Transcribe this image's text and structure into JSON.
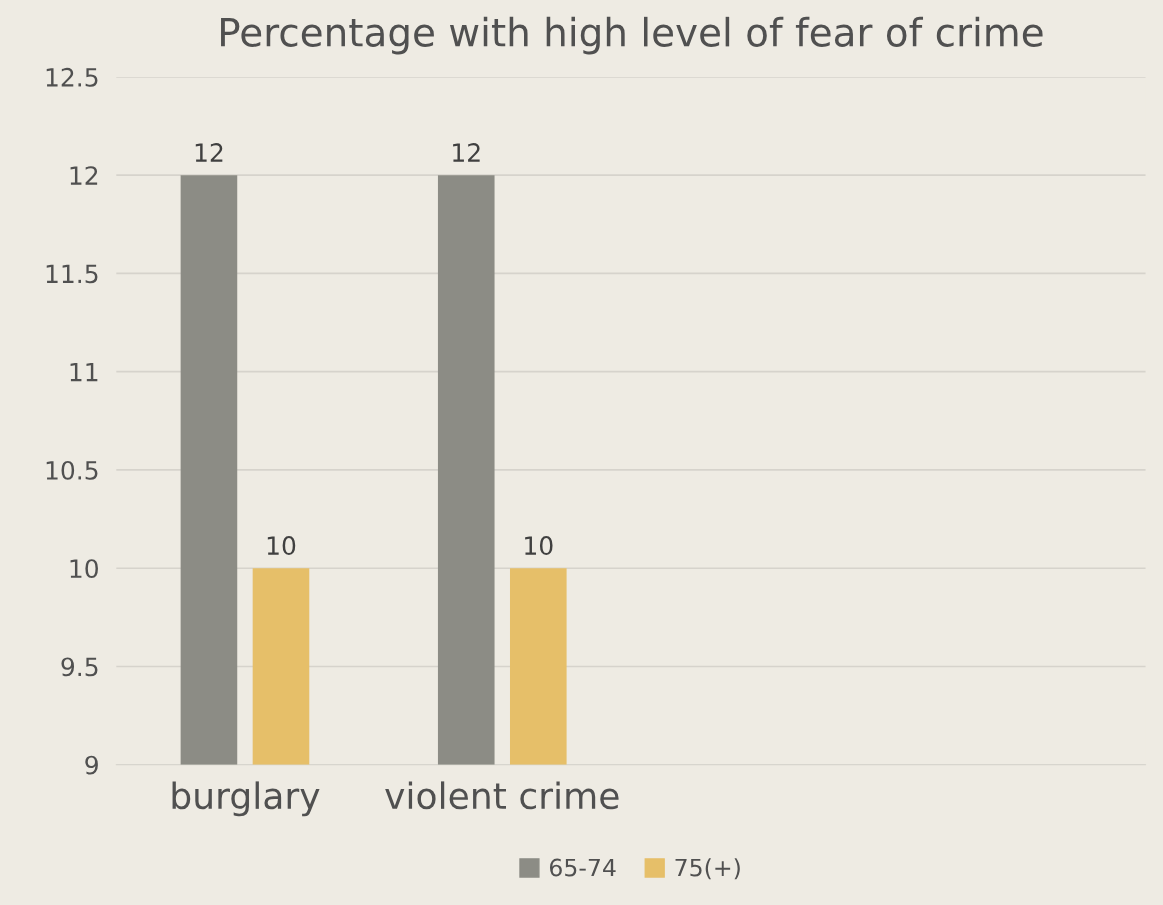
{
  "chart_data": {
    "type": "bar",
    "title": "Percentage with high level of fear of crime",
    "categories": [
      "burglary",
      "violent crime",
      null,
      null
    ],
    "series": [
      {
        "name": "65-74",
        "color": "#8c8c85",
        "values": [
          12,
          12,
          null,
          null
        ]
      },
      {
        "name": "75(+)",
        "color": "#e6bf69",
        "values": [
          10,
          10,
          null,
          null
        ]
      }
    ],
    "ylim": [
      9,
      12.5
    ],
    "yticks": [
      9,
      9.5,
      10,
      10.5,
      11,
      11.5,
      12,
      12.5
    ],
    "grid": "y",
    "legend": "bottom",
    "data_labels": true
  }
}
